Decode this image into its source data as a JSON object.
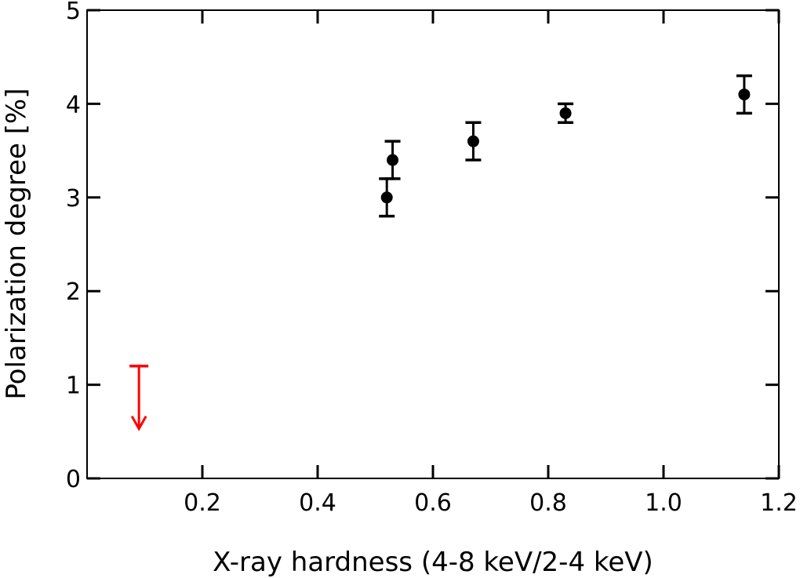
{
  "chart_data": {
    "type": "scatter",
    "title": "",
    "xlabel": "X-ray hardness (4-8 keV/2-4 keV)",
    "ylabel": "Polarization degree [%]",
    "xlim": [
      0.0,
      1.2
    ],
    "ylim": [
      0,
      5
    ],
    "x_ticks": [
      0.2,
      0.4,
      0.6,
      0.8,
      1.0,
      1.2
    ],
    "x_tick_labels": [
      "0.2",
      "0.4",
      "0.6",
      "0.8",
      "1.0",
      "1.2"
    ],
    "y_ticks": [
      0,
      1,
      2,
      3,
      4,
      5
    ],
    "y_tick_labels": [
      "0",
      "1",
      "2",
      "3",
      "4",
      "5"
    ],
    "grid": false,
    "legend": null,
    "series": [
      {
        "name": "measurements",
        "color": "#000000",
        "marker": "circle",
        "points": [
          {
            "x": 0.52,
            "y": 3.0,
            "y_err_low": 2.8,
            "y_err_high": 3.2
          },
          {
            "x": 0.53,
            "y": 3.4,
            "y_err_low": 3.2,
            "y_err_high": 3.6
          },
          {
            "x": 0.67,
            "y": 3.6,
            "y_err_low": 3.4,
            "y_err_high": 3.8
          },
          {
            "x": 0.83,
            "y": 3.9,
            "y_err_low": 3.8,
            "y_err_high": 4.0
          },
          {
            "x": 1.14,
            "y": 4.1,
            "y_err_low": 3.9,
            "y_err_high": 4.3
          }
        ]
      },
      {
        "name": "upper limit",
        "color": "#ff0000",
        "marker": "down-arrow",
        "points": [
          {
            "x": 0.09,
            "upper_limit": 1.2
          }
        ]
      }
    ]
  }
}
